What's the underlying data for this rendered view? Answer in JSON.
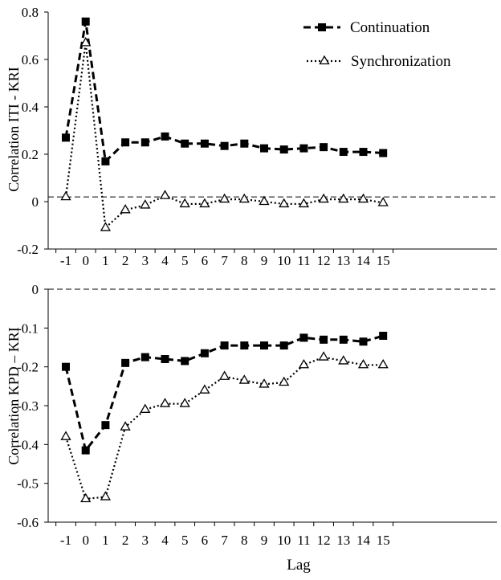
{
  "chart_data": [
    {
      "type": "line",
      "title": "",
      "xlabel": "",
      "ylabel": "Correlation ITI - KRI",
      "x": [
        -1,
        0,
        1,
        2,
        3,
        4,
        5,
        6,
        7,
        8,
        9,
        10,
        11,
        12,
        13,
        14,
        15
      ],
      "x_tick_labels": [
        "-1",
        "0",
        "1",
        "2",
        "3",
        "4",
        "5",
        "6",
        "7",
        "8",
        "9",
        "10",
        "11",
        "12",
        "13",
        "14",
        "15"
      ],
      "ylim": [
        -0.2,
        0.8
      ],
      "y_ticks": [
        -0.2,
        0,
        0.2,
        0.4,
        0.6,
        0.8
      ],
      "y_tick_labels": [
        "-0.2",
        "0",
        "0.2",
        "0.4",
        "0.6",
        "0.8"
      ],
      "reference_line": 0.02,
      "grid": false,
      "legend_position": "top-right",
      "series": [
        {
          "name": "Continuation",
          "style": "dashed",
          "marker": "filled-square",
          "color": "#000000",
          "values": [
            0.27,
            0.76,
            0.17,
            0.25,
            0.25,
            0.275,
            0.245,
            0.245,
            0.235,
            0.245,
            0.225,
            0.22,
            0.225,
            0.23,
            0.21,
            0.21,
            0.205
          ]
        },
        {
          "name": "Synchronization",
          "style": "dotted",
          "marker": "open-triangle",
          "color": "#000000",
          "values": [
            0.02,
            0.67,
            -0.11,
            -0.035,
            -0.015,
            0.025,
            -0.01,
            -0.01,
            0.01,
            0.01,
            0.0,
            -0.01,
            -0.01,
            0.01,
            0.01,
            0.01,
            -0.005
          ]
        }
      ]
    },
    {
      "type": "line",
      "title": "",
      "xlabel": "Lag",
      "ylabel": "Correlation KPD – KRI",
      "x": [
        -1,
        0,
        1,
        2,
        3,
        4,
        5,
        6,
        7,
        8,
        9,
        10,
        11,
        12,
        13,
        14,
        15
      ],
      "x_tick_labels": [
        "-1",
        "0",
        "1",
        "2",
        "3",
        "4",
        "5",
        "6",
        "7",
        "8",
        "9",
        "10",
        "11",
        "12",
        "13",
        "14",
        "15"
      ],
      "ylim": [
        -0.6,
        0
      ],
      "y_ticks": [
        -0.6,
        -0.5,
        -0.4,
        -0.3,
        -0.2,
        -0.1,
        0
      ],
      "y_tick_labels": [
        "-0.6",
        "-0.5",
        "-0.4",
        "-0.3",
        "-0.2",
        "-0.1",
        "0"
      ],
      "reference_line": 0,
      "grid": false,
      "series": [
        {
          "name": "Continuation",
          "style": "dashed",
          "marker": "filled-square",
          "color": "#000000",
          "values": [
            -0.2,
            -0.415,
            -0.35,
            -0.19,
            -0.175,
            -0.18,
            -0.185,
            -0.165,
            -0.145,
            -0.145,
            -0.145,
            -0.145,
            -0.125,
            -0.13,
            -0.13,
            -0.135,
            -0.12
          ]
        },
        {
          "name": "Synchronization",
          "style": "dotted",
          "marker": "open-triangle",
          "color": "#000000",
          "values": [
            -0.38,
            -0.54,
            -0.535,
            -0.355,
            -0.31,
            -0.295,
            -0.295,
            -0.26,
            -0.225,
            -0.235,
            -0.245,
            -0.24,
            -0.195,
            -0.175,
            -0.185,
            -0.195,
            -0.195
          ]
        }
      ]
    }
  ]
}
